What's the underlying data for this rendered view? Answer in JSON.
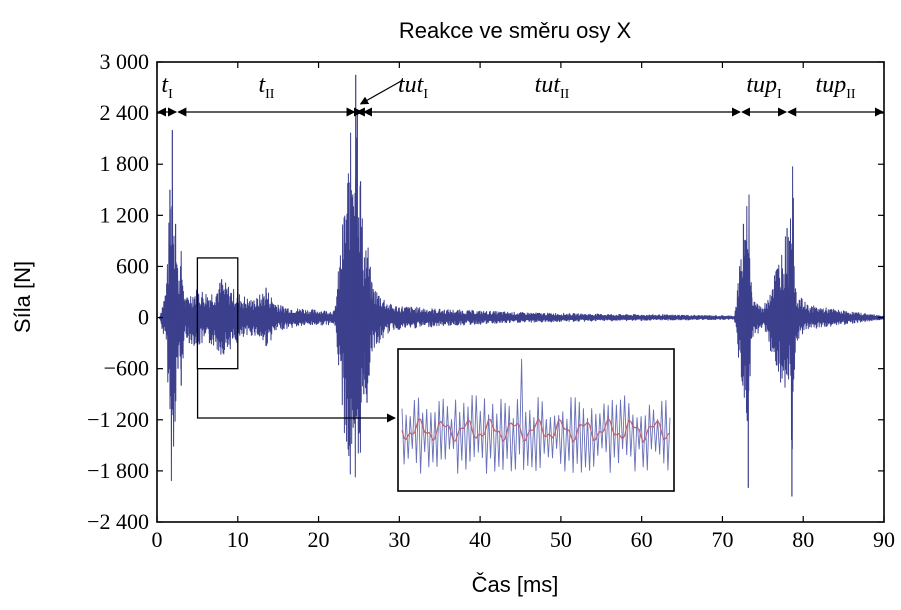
{
  "chart_data": {
    "type": "line",
    "title": "Reakce ve směru osy X",
    "xlabel": "Čas [ms]",
    "ylabel": "Síla [N]",
    "xlim": [
      0,
      90
    ],
    "ylim": [
      -2400,
      3000
    ],
    "x_ticks": [
      "0",
      "10",
      "20",
      "30",
      "40",
      "50",
      "60",
      "70",
      "80",
      "90"
    ],
    "y_ticks": [
      "3 000",
      "2 400",
      "1 800",
      "1 200",
      "600",
      "0",
      "-600",
      "-1 200",
      "-1 800",
      "-2 400"
    ],
    "colors": {
      "signal": "#3b3f8c",
      "filtered": "#c06070",
      "frame": "#000000"
    },
    "series": [
      {
        "values": [
          [
            0.3,
            0
          ],
          [
            1.2,
            400
          ],
          [
            1.6,
            1500
          ],
          [
            1.9,
            2200
          ],
          [
            2.3,
            1100
          ],
          [
            2.6,
            -600
          ],
          [
            3.0,
            -800
          ],
          [
            3.5,
            200
          ],
          [
            4.0,
            -300
          ],
          [
            5.0,
            350
          ],
          [
            6.5,
            -300
          ],
          [
            8.0,
            450
          ],
          [
            10.0,
            300
          ],
          [
            12.0,
            200
          ],
          [
            13.5,
            350
          ],
          [
            15.0,
            150
          ],
          [
            18.0,
            100
          ],
          [
            22.0,
            80
          ],
          [
            24.6,
            2850
          ],
          [
            24.8,
            2400
          ],
          [
            25.2,
            1600
          ],
          [
            25.6,
            -900
          ],
          [
            26.0,
            -1000
          ],
          [
            26.6,
            400
          ],
          [
            27.5,
            -300
          ],
          [
            29.0,
            150
          ],
          [
            35.0,
            100
          ],
          [
            45.0,
            60
          ],
          [
            55.0,
            40
          ],
          [
            65.0,
            30
          ],
          [
            71.5,
            20
          ],
          [
            72.6,
            1100
          ],
          [
            72.9,
            900
          ],
          [
            73.2,
            -2000
          ],
          [
            73.6,
            300
          ],
          [
            75.0,
            100
          ],
          [
            78.0,
            1050
          ],
          [
            78.3,
            900
          ],
          [
            78.6,
            -2100
          ],
          [
            79.1,
            300
          ],
          [
            80.5,
            150
          ],
          [
            85.0,
            80
          ],
          [
            90.0,
            20
          ]
        ]
      }
    ],
    "phases": [
      {
        "label": "t",
        "sub": "I",
        "x_start": 0,
        "x_end": 2.5
      },
      {
        "label": "t",
        "sub": "II",
        "x_start": 2.5,
        "x_end": 24.6
      },
      {
        "label": "tut",
        "sub": "I",
        "x_start": 24.6,
        "x_end": 25.5
      },
      {
        "label": "tut",
        "sub": "II",
        "x_start": 25.5,
        "x_end": 72.3
      },
      {
        "label": "tup",
        "sub": "I",
        "x_start": 72.3,
        "x_end": 78.0
      },
      {
        "label": "tup",
        "sub": "II",
        "x_start": 78.0,
        "x_end": 90
      }
    ],
    "zoom": {
      "source_x": [
        5,
        10
      ],
      "source_y": [
        -600,
        700
      ]
    }
  }
}
